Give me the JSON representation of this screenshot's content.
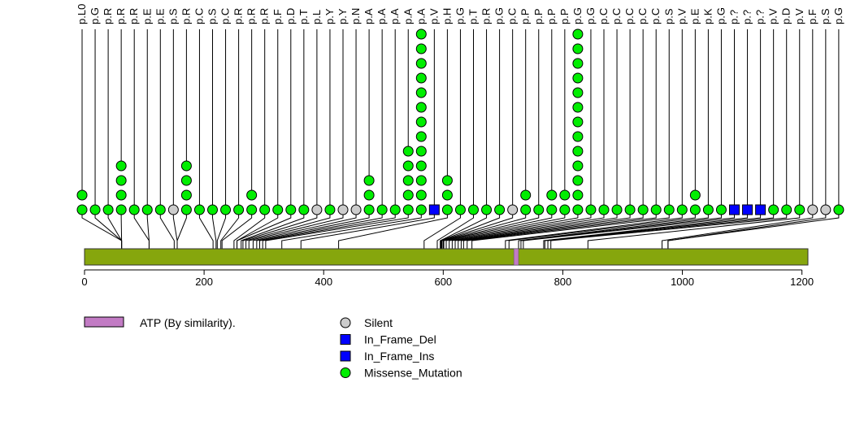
{
  "chart_data": {
    "type": "lollipop",
    "title": "",
    "xlabel": "",
    "ylabel": "",
    "xlim": [
      0,
      1210
    ],
    "x_ticks": [
      0,
      200,
      400,
      600,
      800,
      1000,
      1200
    ],
    "protein_length": 1210,
    "domains": [
      {
        "label": "ATP (By similarity).",
        "start": 718,
        "end": 726,
        "color": "#c27bc4"
      }
    ],
    "variant_types": [
      {
        "name": "Silent",
        "shape": "circle",
        "color": "#cccccc"
      },
      {
        "name": "In_Frame_Del",
        "shape": "square",
        "color": "#0000ff"
      },
      {
        "name": "In_Frame_Ins",
        "shape": "square",
        "color": "#0000ff"
      },
      {
        "name": "Missense_Mutation",
        "shape": "circle",
        "color": "#00ee00"
      }
    ],
    "mutations": [
      {
        "label": "p.L0",
        "pos": 62,
        "count": 2,
        "type": "Missense_Mutation"
      },
      {
        "label": "p.G",
        "pos": 62,
        "count": 1,
        "type": "Missense_Mutation"
      },
      {
        "label": "p.R",
        "pos": 62,
        "count": 1,
        "type": "Missense_Mutation"
      },
      {
        "label": "p.R",
        "pos": 62,
        "count": 4,
        "type": "Missense_Mutation"
      },
      {
        "label": "p.R",
        "pos": 108,
        "count": 1,
        "type": "Missense_Mutation"
      },
      {
        "label": "p.E",
        "pos": 108,
        "count": 1,
        "type": "Missense_Mutation"
      },
      {
        "label": "p.E",
        "pos": 150,
        "count": 1,
        "type": "Missense_Mutation"
      },
      {
        "label": "p.S",
        "pos": 155,
        "count": 1,
        "type": "Silent"
      },
      {
        "label": "p.R",
        "pos": 155,
        "count": 4,
        "type": "Missense_Mutation"
      },
      {
        "label": "p.C",
        "pos": 215,
        "count": 1,
        "type": "Missense_Mutation"
      },
      {
        "label": "p.S",
        "pos": 220,
        "count": 1,
        "type": "Missense_Mutation"
      },
      {
        "label": "p.C",
        "pos": 222,
        "count": 1,
        "type": "Missense_Mutation"
      },
      {
        "label": "p.R",
        "pos": 228,
        "count": 1,
        "type": "Missense_Mutation"
      },
      {
        "label": "p.R",
        "pos": 230,
        "count": 2,
        "type": "Missense_Mutation"
      },
      {
        "label": "p.R",
        "pos": 250,
        "count": 1,
        "type": "Missense_Mutation"
      },
      {
        "label": "p.F",
        "pos": 255,
        "count": 1,
        "type": "Missense_Mutation"
      },
      {
        "label": "p.D",
        "pos": 255,
        "count": 1,
        "type": "Missense_Mutation"
      },
      {
        "label": "p.T",
        "pos": 262,
        "count": 1,
        "type": "Missense_Mutation"
      },
      {
        "label": "p.L",
        "pos": 265,
        "count": 1,
        "type": "Silent"
      },
      {
        "label": "p.Y",
        "pos": 270,
        "count": 1,
        "type": "Missense_Mutation"
      },
      {
        "label": "p.Y",
        "pos": 275,
        "count": 1,
        "type": "Silent"
      },
      {
        "label": "p.N",
        "pos": 282,
        "count": 1,
        "type": "Silent"
      },
      {
        "label": "p.A",
        "pos": 288,
        "count": 3,
        "type": "Missense_Mutation"
      },
      {
        "label": "p.A",
        "pos": 293,
        "count": 1,
        "type": "Missense_Mutation"
      },
      {
        "label": "p.A",
        "pos": 298,
        "count": 1,
        "type": "Missense_Mutation"
      },
      {
        "label": "p.A",
        "pos": 303,
        "count": 5,
        "type": "Missense_Mutation"
      },
      {
        "label": "p.A",
        "pos": 330,
        "count": 13,
        "type": "Missense_Mutation"
      },
      {
        "label": "p.V",
        "pos": 362,
        "count": 1,
        "type": "In_Frame_Del"
      },
      {
        "label": "p.H",
        "pos": 425,
        "count": 3,
        "type": "Missense_Mutation"
      },
      {
        "label": "p.G",
        "pos": 568,
        "count": 1,
        "type": "Missense_Mutation"
      },
      {
        "label": "p.T",
        "pos": 590,
        "count": 1,
        "type": "Missense_Mutation"
      },
      {
        "label": "p.R",
        "pos": 595,
        "count": 1,
        "type": "Missense_Mutation"
      },
      {
        "label": "p.G",
        "pos": 596,
        "count": 1,
        "type": "Missense_Mutation"
      },
      {
        "label": "p.C",
        "pos": 597,
        "count": 1,
        "type": "Silent"
      },
      {
        "label": "p.P",
        "pos": 598,
        "count": 2,
        "type": "Missense_Mutation"
      },
      {
        "label": "p.P",
        "pos": 600,
        "count": 1,
        "type": "Missense_Mutation"
      },
      {
        "label": "p.P",
        "pos": 601,
        "count": 2,
        "type": "Missense_Mutation"
      },
      {
        "label": "p.P",
        "pos": 605,
        "count": 2,
        "type": "Missense_Mutation"
      },
      {
        "label": "p.G",
        "pos": 610,
        "count": 13,
        "type": "Missense_Mutation"
      },
      {
        "label": "p.G",
        "pos": 615,
        "count": 1,
        "type": "Missense_Mutation"
      },
      {
        "label": "p.C",
        "pos": 620,
        "count": 1,
        "type": "Missense_Mutation"
      },
      {
        "label": "p.C",
        "pos": 625,
        "count": 1,
        "type": "Missense_Mutation"
      },
      {
        "label": "p.C",
        "pos": 630,
        "count": 1,
        "type": "Missense_Mutation"
      },
      {
        "label": "p.C",
        "pos": 634,
        "count": 1,
        "type": "Missense_Mutation"
      },
      {
        "label": "p.C",
        "pos": 640,
        "count": 1,
        "type": "Missense_Mutation"
      },
      {
        "label": "p.S",
        "pos": 648,
        "count": 1,
        "type": "Missense_Mutation"
      },
      {
        "label": "p.V",
        "pos": 704,
        "count": 1,
        "type": "Missense_Mutation"
      },
      {
        "label": "p.E",
        "pos": 710,
        "count": 2,
        "type": "Missense_Mutation"
      },
      {
        "label": "p.K",
        "pos": 726,
        "count": 1,
        "type": "Missense_Mutation"
      },
      {
        "label": "p.G",
        "pos": 730,
        "count": 1,
        "type": "Missense_Mutation"
      },
      {
        "label": "p.?",
        "pos": 734,
        "count": 1,
        "type": "In_Frame_Ins"
      },
      {
        "label": "p.?",
        "pos": 768,
        "count": 1,
        "type": "In_Frame_Ins"
      },
      {
        "label": "p.?",
        "pos": 770,
        "count": 1,
        "type": "In_Frame_Ins"
      },
      {
        "label": "p.V",
        "pos": 775,
        "count": 1,
        "type": "Missense_Mutation"
      },
      {
        "label": "p.D",
        "pos": 780,
        "count": 1,
        "type": "Missense_Mutation"
      },
      {
        "label": "p.V",
        "pos": 842,
        "count": 1,
        "type": "Missense_Mutation"
      },
      {
        "label": "p.F",
        "pos": 966,
        "count": 1,
        "type": "Silent"
      },
      {
        "label": "p.S",
        "pos": 976,
        "count": 1,
        "type": "Silent"
      },
      {
        "label": "p.G",
        "pos": 976,
        "count": 1,
        "type": "Missense_Mutation"
      }
    ]
  },
  "legend": {
    "domain_label": "ATP (By similarity).",
    "types": [
      "Silent",
      "In_Frame_Del",
      "In_Frame_Ins",
      "Missense_Mutation"
    ]
  }
}
